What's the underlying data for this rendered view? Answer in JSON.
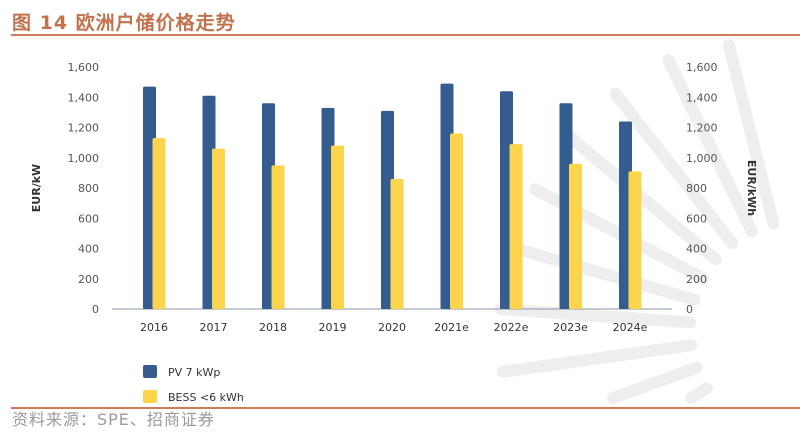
{
  "title": "图 14 欧洲户储价格走势",
  "source": "资料来源：SPE、招商证券",
  "chart_data": {
    "type": "bar",
    "title": "",
    "categories": [
      "2016",
      "2017",
      "2018",
      "2019",
      "2020",
      "2021e",
      "2022e",
      "2023e",
      "2024e"
    ],
    "series": [
      {
        "name": "PV 7 kWp",
        "color": "#355c8f",
        "axis": "left",
        "values": [
          1470,
          1410,
          1360,
          1330,
          1310,
          1490,
          1440,
          1360,
          1240
        ]
      },
      {
        "name": "BESS <6 kWh",
        "color": "#fcd54d",
        "axis": "right",
        "values": [
          1130,
          1060,
          950,
          1080,
          860,
          1160,
          1090,
          960,
          910
        ]
      }
    ],
    "ylabel_left": "EUR/kW",
    "ylabel_right": "EUR/kWh",
    "ylim": [
      0,
      1600
    ],
    "yticks": [
      "0",
      "200",
      "400",
      "600",
      "800",
      "1,000",
      "1,200",
      "1,400",
      "1,600"
    ],
    "grid": false,
    "legend_placement": "bottom-left"
  }
}
